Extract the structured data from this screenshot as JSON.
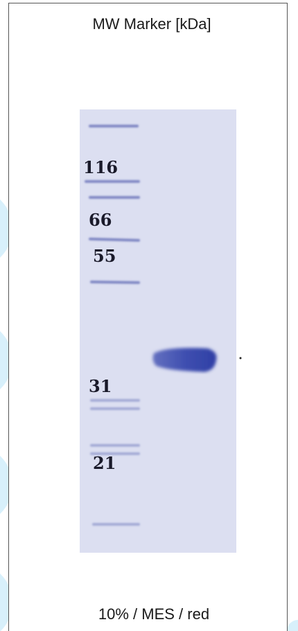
{
  "title": "MW Marker [kDa]",
  "marker_labels": [
    "116",
    "66",
    "55",
    "31",
    "21"
  ],
  "footer": "10% / MES / red"
}
